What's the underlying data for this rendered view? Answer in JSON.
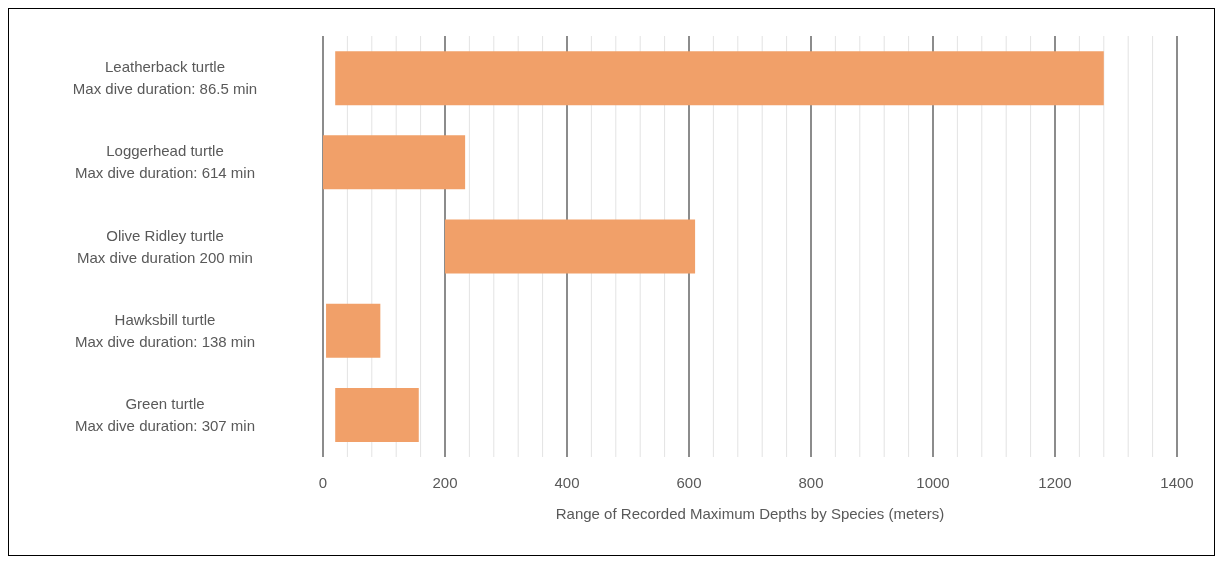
{
  "chart_data": {
    "type": "bar",
    "orientation": "horizontal",
    "categories": [
      "Leatherback turtle\nMax dive duration: 86.5 min",
      "Loggerhead turtle\nMax dive duration: 614 min",
      "Olive Ridley turtle\nMax dive duration 200 min",
      "Hawksbill turtle\nMax dive duration: 138 min",
      "Green turtle\nMax dive duration: 307 min"
    ],
    "base": [
      20,
      0,
      200,
      5,
      20
    ],
    "values": [
      1260,
      233,
      410,
      89,
      137
    ],
    "color": "#f1a069",
    "xlabel": "Range of Recorded Maximum Depths by Species (meters)",
    "xlim": [
      0,
      1400
    ],
    "xticks": [
      0,
      {
        "value": 40,
        "label": null
      },
      {
        "value": 80,
        "label": null
      },
      {
        "value": 120,
        "label": null
      },
      {
        "value": 160,
        "label": null
      },
      200,
      {
        "value": 240,
        "label": null
      },
      {
        "value": 280,
        "label": null
      },
      {
        "value": 320,
        "label": null
      },
      {
        "value": 360,
        "label": null
      },
      400,
      {
        "value": 440,
        "label": null
      },
      {
        "value": 480,
        "label": null
      },
      {
        "value": 520,
        "label": null
      },
      {
        "value": 560,
        "label": null
      },
      600,
      {
        "value": 640,
        "label": null
      },
      {
        "value": 680,
        "label": null
      },
      {
        "value": 720,
        "label": null
      },
      {
        "value": 760,
        "label": null
      },
      800,
      {
        "value": 840,
        "label": null
      },
      {
        "value": 880,
        "label": null
      },
      {
        "value": 920,
        "label": null
      },
      {
        "value": 960,
        "label": null
      },
      1000,
      {
        "value": 1040,
        "label": null
      },
      {
        "value": 1080,
        "label": null
      },
      {
        "value": 1120,
        "label": null
      },
      {
        "value": 1160,
        "label": null
      },
      1200,
      {
        "value": 1240,
        "label": null
      },
      {
        "value": 1280,
        "label": null
      },
      {
        "value": 1320,
        "label": null
      },
      {
        "value": 1360,
        "label": null
      },
      1400
    ],
    "grid": "x",
    "legend": false
  }
}
